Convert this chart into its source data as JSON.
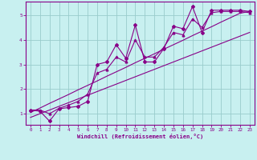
{
  "xlabel": "Windchill (Refroidissement éolien,°C)",
  "bg_color": "#c8f0f0",
  "line_color": "#880088",
  "grid_color": "#99cccc",
  "xlim": [
    -0.5,
    23.5
  ],
  "ylim": [
    0.55,
    5.55
  ],
  "xticks": [
    0,
    1,
    2,
    3,
    4,
    5,
    6,
    7,
    8,
    9,
    10,
    11,
    12,
    13,
    14,
    15,
    16,
    17,
    18,
    19,
    20,
    21,
    22,
    23
  ],
  "yticks": [
    1,
    2,
    3,
    4,
    5
  ],
  "data_x": [
    0,
    1,
    2,
    3,
    4,
    5,
    6,
    7,
    8,
    9,
    10,
    11,
    12,
    13,
    14,
    15,
    16,
    17,
    18,
    19,
    20,
    21,
    22,
    23
  ],
  "data_y_zigzag": [
    1.15,
    1.1,
    0.7,
    1.2,
    1.25,
    1.3,
    1.5,
    3.0,
    3.1,
    3.8,
    3.25,
    4.6,
    3.1,
    3.1,
    3.65,
    4.55,
    4.45,
    5.35,
    4.3,
    5.2,
    5.2,
    5.2,
    5.2,
    5.15
  ],
  "data_y_line1": [
    0.85,
    1.0,
    1.15,
    1.3,
    1.45,
    1.6,
    1.75,
    1.9,
    2.05,
    2.2,
    2.35,
    2.5,
    2.65,
    2.8,
    2.95,
    3.1,
    3.25,
    3.4,
    3.55,
    3.7,
    3.85,
    4.0,
    4.15,
    4.3
  ],
  "data_y_line2": [
    1.05,
    1.23,
    1.42,
    1.6,
    1.78,
    1.97,
    2.15,
    2.33,
    2.52,
    2.7,
    2.88,
    3.07,
    3.25,
    3.43,
    3.62,
    3.8,
    3.98,
    4.17,
    4.35,
    4.53,
    4.72,
    4.9,
    5.08,
    5.15
  ],
  "data_y_smooth": [
    1.15,
    1.15,
    1.0,
    1.22,
    1.35,
    1.5,
    1.8,
    2.65,
    2.8,
    3.3,
    3.1,
    4.0,
    3.3,
    3.3,
    3.7,
    4.3,
    4.2,
    4.85,
    4.5,
    5.1,
    5.15,
    5.15,
    5.15,
    5.1
  ]
}
